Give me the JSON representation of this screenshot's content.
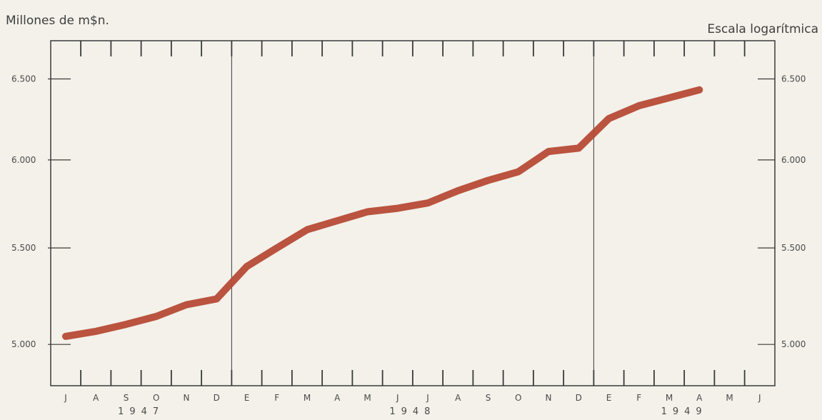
{
  "chart_data": {
    "type": "line",
    "title": "",
    "ylabel": "Millones de m$n.",
    "scale_label": "Escala logarítmica",
    "yscale": "log",
    "ylim": [
      4800,
      6750
    ],
    "yticks": [
      5000,
      5500,
      6000,
      6500
    ],
    "ytick_labels_left": [
      "5.000",
      "5.500",
      "6.000",
      "6.500"
    ],
    "ytick_labels_right": [
      "5.000",
      "5.500",
      "6.000",
      "6.500"
    ],
    "months": [
      "J",
      "A",
      "S",
      "O",
      "N",
      "D",
      "E",
      "F",
      "M",
      "A",
      "M",
      "J",
      "J",
      "A",
      "S",
      "O",
      "N",
      "D",
      "E",
      "F",
      "M",
      "A",
      "M",
      "J"
    ],
    "year_labels": [
      {
        "label": "1947",
        "start": 0,
        "end": 5
      },
      {
        "label": "1948",
        "start": 6,
        "end": 17
      },
      {
        "label": "1949",
        "start": 18,
        "end": 23
      }
    ],
    "year_dividers": [
      6,
      18
    ],
    "series": [
      {
        "color": "#b64a36",
        "values": [
          5040,
          5065,
          5100,
          5140,
          5200,
          5230,
          5400,
          5500,
          5600,
          5650,
          5700,
          5720,
          5750,
          5820,
          5880,
          5930,
          6050,
          6070,
          6250,
          6330,
          6380,
          6430
        ]
      }
    ],
    "grid": false
  }
}
